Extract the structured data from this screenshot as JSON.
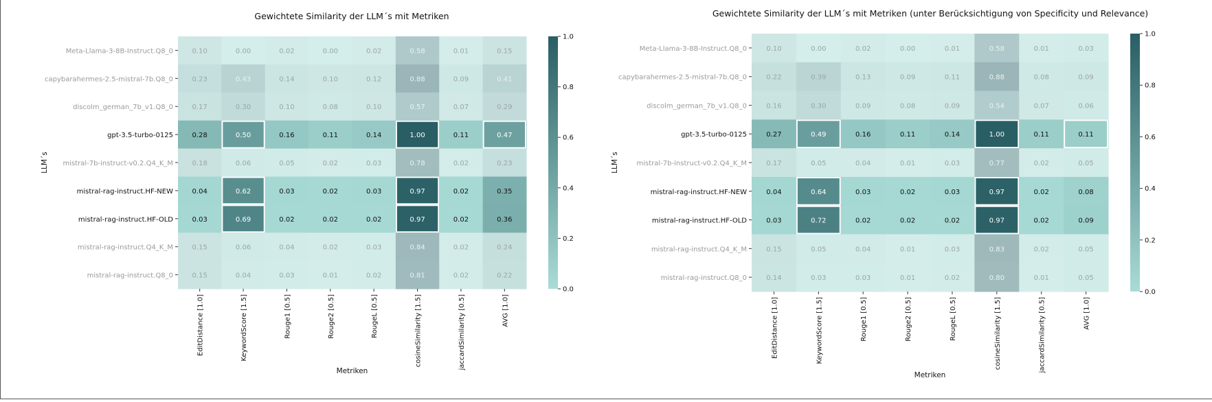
{
  "chart_data": [
    {
      "type": "heatmap",
      "title": "Gewichtete Similarity der LLM´s mit Metriken",
      "xlabel": "Metriken",
      "ylabel": "LLM´s",
      "colorbar": {
        "min": 0.0,
        "max": 1.0,
        "ticks": [
          "0.0",
          "0.2",
          "0.4",
          "0.6",
          "0.8",
          "1.0"
        ]
      },
      "columns": [
        "EditDistance [1.0]",
        "KeywordScore [1.5]",
        "Rouge1 [0.5]",
        "Rouge2 [0.5]",
        "RougeL [0.5]",
        "cosineSimilarity [1.5]",
        "jaccardSimilarity [0.5]",
        "AVG [1.0]"
      ],
      "rows": [
        "Meta-Llama-3-8B-Instruct.Q8_0",
        "capybarahermes-2.5-mistral-7b.Q8_0",
        "discolm_german_7b_v1.Q8_0",
        "gpt-3.5-turbo-0125",
        "mistral-7b-instruct-v0.2.Q4_K_M",
        "mistral-rag-instruct.HF-NEW",
        "mistral-rag-instruct.HF-OLD",
        "mistral-rag-instruct.Q4_K_M",
        "mistral-rag-instruct.Q8_0"
      ],
      "highlighted_rows": [
        3,
        5,
        6
      ],
      "values": [
        [
          0.1,
          0.0,
          0.02,
          0.0,
          0.02,
          0.58,
          0.01,
          0.15
        ],
        [
          0.23,
          0.43,
          0.14,
          0.1,
          0.12,
          0.88,
          0.09,
          0.41
        ],
        [
          0.17,
          0.3,
          0.1,
          0.08,
          0.1,
          0.57,
          0.07,
          0.29
        ],
        [
          0.28,
          0.5,
          0.16,
          0.11,
          0.14,
          1.0,
          0.11,
          0.47
        ],
        [
          0.18,
          0.06,
          0.05,
          0.02,
          0.03,
          0.78,
          0.02,
          0.23
        ],
        [
          0.04,
          0.62,
          0.03,
          0.02,
          0.03,
          0.97,
          0.02,
          0.35
        ],
        [
          0.03,
          0.69,
          0.02,
          0.02,
          0.02,
          0.97,
          0.02,
          0.36
        ],
        [
          0.15,
          0.06,
          0.04,
          0.02,
          0.03,
          0.84,
          0.02,
          0.24
        ],
        [
          0.15,
          0.04,
          0.03,
          0.01,
          0.02,
          0.81,
          0.02,
          0.22
        ]
      ],
      "boxed_cells": [
        [
          3,
          1
        ],
        [
          3,
          5
        ],
        [
          3,
          7
        ],
        [
          5,
          1
        ],
        [
          5,
          5
        ],
        [
          6,
          1
        ],
        [
          6,
          5
        ]
      ]
    },
    {
      "type": "heatmap",
      "title": "Gewichtete Similarity der LLM´s mit Metriken (unter Berücksichtigung von Specificity und Relevance)",
      "xlabel": "Metriken",
      "ylabel": "LLM´s",
      "colorbar": {
        "min": 0.0,
        "max": 1.0,
        "ticks": [
          "0.0",
          "0.2",
          "0.4",
          "0.6",
          "0.8",
          "1.0"
        ]
      },
      "columns": [
        "EditDistance [1.0]",
        "KeywordScore [1.5]",
        "Rouge1 [0.5]",
        "Rouge2 [0.5]",
        "RougeL [0.5]",
        "cosineSimilarity [1.5]",
        "jaccardSimilarity [0.5]",
        "AVG [1.0]"
      ],
      "rows": [
        "Meta-Llama-3-8B-Instruct.Q8_0",
        "capybarahermes-2.5-mistral-7b.Q8_0",
        "discolm_german_7b_v1.Q8_0",
        "gpt-3.5-turbo-0125",
        "mistral-7b-instruct-v0.2.Q4_K_M",
        "mistral-rag-instruct.HF-NEW",
        "mistral-rag-instruct.HF-OLD",
        "mistral-rag-instruct.Q4_K_M",
        "mistral-rag-instruct.Q8_0"
      ],
      "highlighted_rows": [
        3,
        5,
        6
      ],
      "values": [
        [
          0.1,
          0.0,
          0.02,
          0.0,
          0.01,
          0.58,
          0.01,
          0.03
        ],
        [
          0.22,
          0.39,
          0.13,
          0.09,
          0.11,
          0.88,
          0.08,
          0.09
        ],
        [
          0.16,
          0.3,
          0.09,
          0.08,
          0.09,
          0.54,
          0.07,
          0.06
        ],
        [
          0.27,
          0.49,
          0.16,
          0.11,
          0.14,
          1.0,
          0.11,
          0.11
        ],
        [
          0.17,
          0.05,
          0.04,
          0.01,
          0.03,
          0.77,
          0.02,
          0.05
        ],
        [
          0.04,
          0.64,
          0.03,
          0.02,
          0.03,
          0.97,
          0.02,
          0.08
        ],
        [
          0.03,
          0.72,
          0.02,
          0.02,
          0.02,
          0.97,
          0.02,
          0.09
        ],
        [
          0.15,
          0.05,
          0.04,
          0.01,
          0.03,
          0.83,
          0.02,
          0.05
        ],
        [
          0.14,
          0.03,
          0.03,
          0.01,
          0.02,
          0.8,
          0.01,
          0.05
        ]
      ],
      "boxed_cells": [
        [
          3,
          1
        ],
        [
          3,
          5
        ],
        [
          3,
          7
        ],
        [
          5,
          1
        ],
        [
          5,
          5
        ],
        [
          6,
          1
        ],
        [
          6,
          5
        ]
      ]
    }
  ]
}
